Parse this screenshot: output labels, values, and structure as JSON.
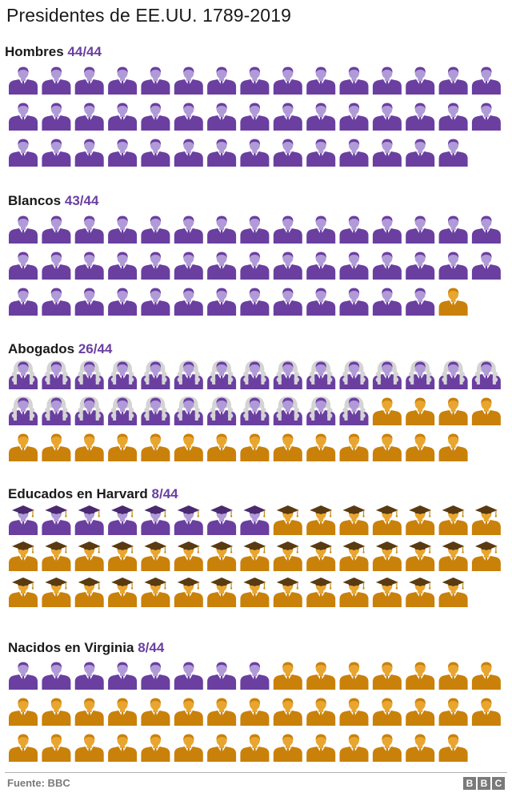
{
  "title": "Presidentes de EE.UU. 1789-2019",
  "colors": {
    "match": "#6a3fa0",
    "match_face": "#b09ad8",
    "other": "#c9810a",
    "other_face": "#e8a630",
    "wig": "#d4d4d4",
    "cap_match": "#4a2a70",
    "cap_other": "#5a3a10"
  },
  "chart_data": {
    "type": "pictogram",
    "title": "Presidentes de EE.UU. 1789-2019",
    "unit": "president",
    "total": 44,
    "sections": [
      {
        "label": "Hombres",
        "count_label": "44/44",
        "count": 44,
        "total": 44,
        "icon": "person-icon"
      },
      {
        "label": "Blancos",
        "count_label": "43/44",
        "count": 43,
        "total": 44,
        "icon": "person-icon"
      },
      {
        "label": "Abogados",
        "count_label": "26/44",
        "count": 26,
        "total": 44,
        "icon": "lawyer-wig-icon"
      },
      {
        "label": "Educados en Harvard",
        "count_label": "8/44",
        "count": 8,
        "total": 44,
        "icon": "graduate-cap-icon"
      },
      {
        "label": "Nacidos en Virginia",
        "count_label": "8/44",
        "count": 8,
        "total": 44,
        "icon": "person-icon"
      }
    ]
  },
  "footer": {
    "source": "Fuente: BBC",
    "logo_letters": [
      "B",
      "B",
      "C"
    ]
  }
}
